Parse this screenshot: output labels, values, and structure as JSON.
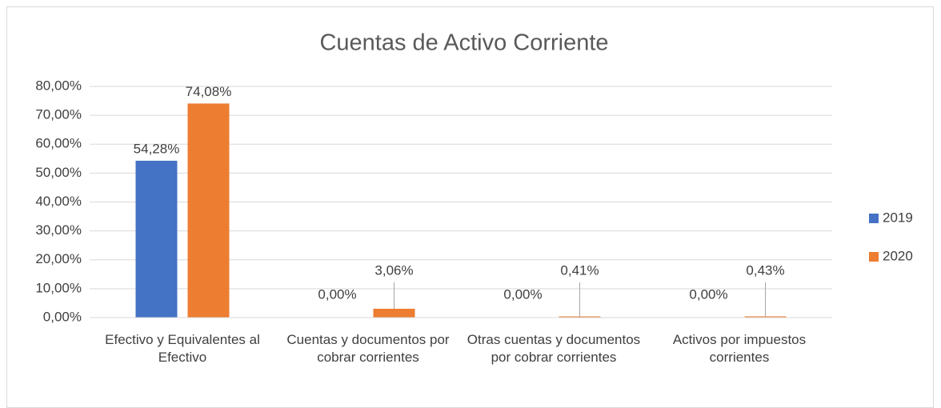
{
  "chart_data": {
    "type": "bar",
    "title": "Cuentas de Activo Corriente",
    "categories": [
      "Efectivo y Equivalentes al Efectivo",
      "Cuentas y documentos por cobrar corrientes",
      "Otras cuentas y documentos por cobrar corrientes",
      "Activos por impuestos corrientes"
    ],
    "series": [
      {
        "name": "2019",
        "color": "#4472c4",
        "values": [
          54.28,
          0,
          0,
          0
        ],
        "value_labels": [
          "54,28%",
          "0,00%",
          "0,00%",
          "0,00%"
        ]
      },
      {
        "name": "2020",
        "color": "#ed7d31",
        "values": [
          74.08,
          3.06,
          0.41,
          0.43
        ],
        "value_labels": [
          "74,08%",
          "3,06%",
          "0,41%",
          "0,43%"
        ]
      }
    ],
    "ylim": [
      0,
      80
    ],
    "yticks": [
      {
        "value": 0,
        "label": "0,00%"
      },
      {
        "value": 10,
        "label": "10,00%"
      },
      {
        "value": 20,
        "label": "20,00%"
      },
      {
        "value": 30,
        "label": "30,00%"
      },
      {
        "value": 40,
        "label": "40,00%"
      },
      {
        "value": 50,
        "label": "50,00%"
      },
      {
        "value": 60,
        "label": "60,00%"
      },
      {
        "value": 70,
        "label": "70,00%"
      },
      {
        "value": 80,
        "label": "80,00%"
      }
    ],
    "grid": true,
    "legend": "right"
  }
}
